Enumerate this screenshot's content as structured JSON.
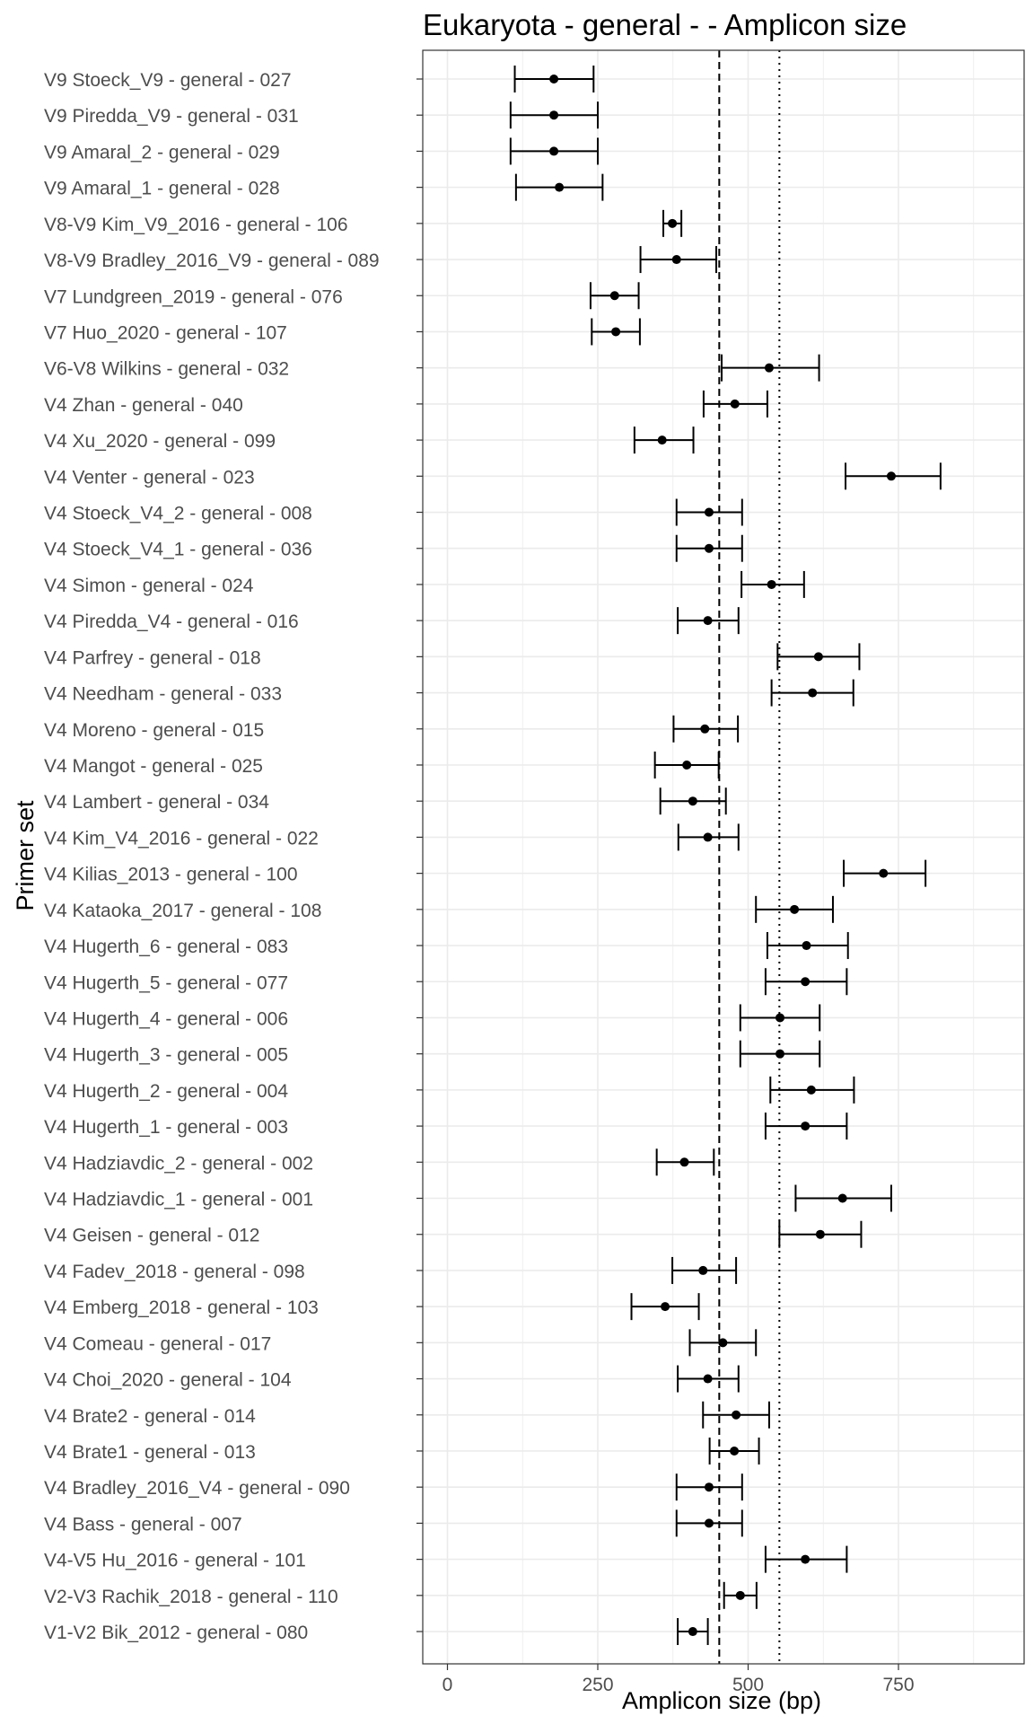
{
  "chart_data": {
    "type": "errorbar-dot",
    "title": "Eukaryota - general -  - Amplicon size",
    "xlabel": "Amplicon size (bp)",
    "ylabel": "Primer set",
    "xlim": [
      -40,
      950
    ],
    "xticks": [
      0,
      250,
      500,
      750
    ],
    "xtick_labels": [
      "0",
      "250",
      "500",
      "750"
    ],
    "grid": true,
    "ref_lines": [
      {
        "style": "dashed",
        "x": 452
      },
      {
        "style": "dotted",
        "x": 552
      }
    ],
    "colors": {
      "points": "#000000",
      "grid": "#ebebeb",
      "panel_border": "#333333",
      "ref_lines": "#000000"
    },
    "categories": [
      "V9 Stoeck_V9 - general - 027",
      "V9 Piredda_V9 - general - 031",
      "V9 Amaral_2 - general - 029",
      "V9 Amaral_1 - general - 028",
      "V8-V9 Kim_V9_2016 - general - 106",
      "V8-V9 Bradley_2016_V9 - general - 089",
      "V7 Lundgreen_2019 - general - 076",
      "V7 Huo_2020 - general - 107",
      "V6-V8 Wilkins - general - 032",
      "V4 Zhan - general - 040",
      "V4 Xu_2020 - general - 099",
      "V4 Venter - general - 023",
      "V4 Stoeck_V4_2 - general - 008",
      "V4 Stoeck_V4_1 - general - 036",
      "V4 Simon - general - 024",
      "V4 Piredda_V4 - general - 016",
      "V4 Parfrey - general - 018",
      "V4 Needham - general - 033",
      "V4 Moreno - general - 015",
      "V4 Mangot - general - 025",
      "V4 Lambert - general - 034",
      "V4 Kim_V4_2016 - general - 022",
      "V4 Kilias_2013 - general - 100",
      "V4 Kataoka_2017 - general - 108",
      "V4 Hugerth_6 - general - 083",
      "V4 Hugerth_5 - general - 077",
      "V4 Hugerth_4 - general - 006",
      "V4 Hugerth_3 - general - 005",
      "V4 Hugerth_2 - general - 004",
      "V4 Hugerth_1 - general - 003",
      "V4 Hadziavdic_2 - general - 002",
      "V4 Hadziavdic_1 - general - 001",
      "V4 Geisen - general - 012",
      "V4 Fadev_2018 - general - 098",
      "V4 Emberg_2018 - general - 103",
      "V4 Comeau - general - 017",
      "V4 Choi_2020 - general - 104",
      "V4 Brate2 - general - 014",
      "V4 Brate1 - general - 013",
      "V4 Bradley_2016_V4 - general - 090",
      "V4 Bass - general - 007",
      "V4-V5 Hu_2016 - general - 101",
      "V2-V3 Rachik_2018 - general - 110",
      "V1-V2 Bik_2012 - general - 080"
    ],
    "mean": [
      177,
      177,
      177,
      186,
      374,
      381,
      278,
      280,
      535,
      478,
      357,
      738,
      435,
      435,
      539,
      433,
      617,
      607,
      428,
      398,
      408,
      433,
      725,
      577,
      597,
      595,
      553,
      553,
      605,
      595,
      394,
      657,
      620,
      425,
      362,
      458,
      433,
      480,
      477,
      435,
      435,
      595,
      487,
      408
    ],
    "lower": [
      112,
      105,
      105,
      114,
      359,
      321,
      238,
      240,
      456,
      426,
      311,
      662,
      381,
      381,
      489,
      383,
      549,
      539,
      376,
      345,
      354,
      384,
      659,
      513,
      532,
      529,
      487,
      487,
      537,
      529,
      348,
      579,
      552,
      374,
      306,
      403,
      383,
      425,
      436,
      381,
      381,
      529,
      460,
      383
    ],
    "upper": [
      243,
      250,
      250,
      258,
      389,
      447,
      318,
      320,
      618,
      532,
      409,
      820,
      490,
      490,
      593,
      484,
      685,
      675,
      483,
      451,
      463,
      484,
      795,
      641,
      666,
      664,
      619,
      619,
      676,
      664,
      443,
      738,
      688,
      480,
      418,
      513,
      484,
      535,
      518,
      490,
      490,
      664,
      514,
      433
    ]
  }
}
